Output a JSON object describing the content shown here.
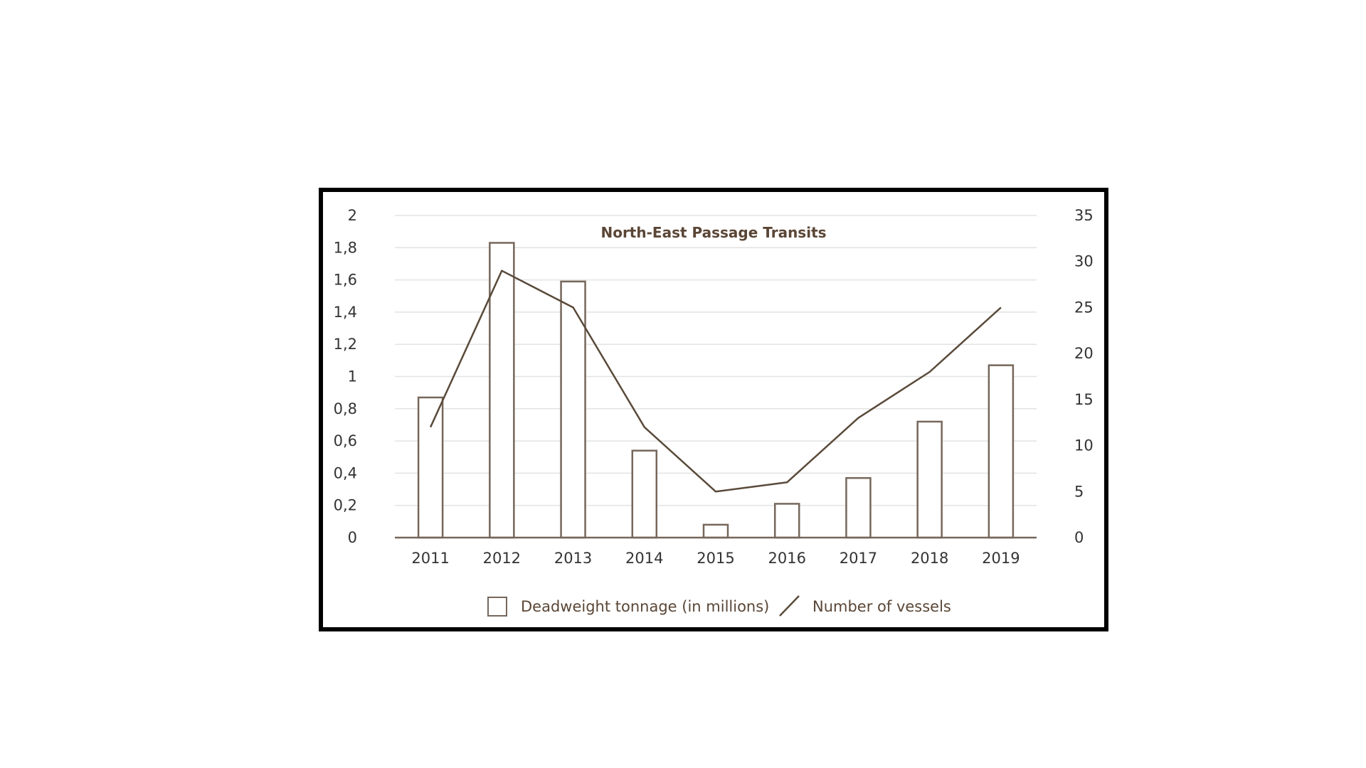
{
  "chart_data": {
    "type": "bar",
    "title": "North-East Passage Transits",
    "categories": [
      "2011",
      "2012",
      "2013",
      "2014",
      "2015",
      "2016",
      "2017",
      "2018",
      "2019"
    ],
    "series": [
      {
        "name": "Deadweight tonnage (in millions)",
        "type": "bar",
        "axis": "left",
        "values": [
          0.87,
          1.83,
          1.59,
          0.54,
          0.08,
          0.21,
          0.37,
          0.72,
          1.07
        ]
      },
      {
        "name": "Number of vessels",
        "type": "line",
        "axis": "right",
        "values": [
          12,
          29,
          25,
          12,
          5,
          6,
          13,
          18,
          25
        ]
      }
    ],
    "y_left": {
      "ylim": [
        0,
        2
      ],
      "ticks": [
        "0",
        "0,2",
        "0,4",
        "0,6",
        "0,8",
        "1",
        "1,2",
        "1,4",
        "1,6",
        "1,8",
        "2"
      ]
    },
    "y_right": {
      "ylim": [
        0,
        35
      ],
      "ticks": [
        "0",
        "5",
        "10",
        "15",
        "20",
        "25",
        "30",
        "35"
      ]
    },
    "grid": true,
    "legend_position": "bottom",
    "colors": {
      "bar_stroke": "#76675b",
      "line": "#5a4a3a",
      "grid": "#e3e3e3",
      "title": "#5a4636"
    }
  }
}
